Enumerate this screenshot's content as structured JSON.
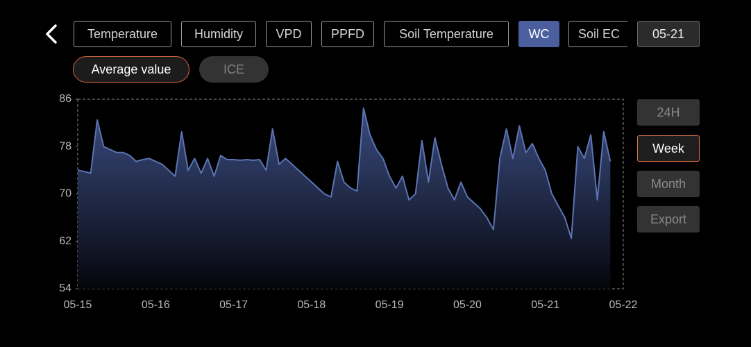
{
  "header": {
    "tabs": [
      "Temperature",
      "Humidity",
      "VPD",
      "PPFD",
      "Soil Temperature",
      "WC",
      "Soil EC"
    ],
    "date": "05-21"
  },
  "modes": [
    "Average value",
    "ICE"
  ],
  "ranges": [
    "24H",
    "Week",
    "Month",
    "Export"
  ],
  "chart_data": {
    "type": "area",
    "categories": [
      "05-15",
      null,
      null,
      null,
      null,
      null,
      null,
      null,
      null,
      null,
      null,
      null,
      "05-16",
      null,
      null,
      null,
      null,
      null,
      null,
      null,
      null,
      null,
      null,
      null,
      "05-17",
      null,
      null,
      null,
      null,
      null,
      null,
      null,
      null,
      null,
      null,
      null,
      "05-18",
      null,
      null,
      null,
      null,
      null,
      null,
      null,
      null,
      null,
      null,
      null,
      "05-19",
      null,
      null,
      null,
      null,
      null,
      null,
      null,
      null,
      null,
      null,
      null,
      "05-20",
      null,
      null,
      null,
      null,
      null,
      null,
      null,
      null,
      null,
      null,
      null,
      "05-21",
      null,
      null,
      null,
      null,
      null,
      null,
      null,
      null,
      null,
      null,
      null,
      "05-22"
    ],
    "series": [
      {
        "name": "WC",
        "color": "#5b74b3",
        "values": [
          74,
          73.8,
          73.5,
          82.5,
          78,
          77.5,
          77,
          77,
          76.5,
          75.5,
          75.8,
          76,
          75.5,
          75,
          74,
          73,
          80.5,
          74,
          76,
          73.5,
          76,
          73,
          76.5,
          75.8,
          75.8,
          75.7,
          75.8,
          75.7,
          75.8,
          74,
          81,
          75,
          76,
          75,
          74,
          73,
          72,
          71,
          70,
          69.5,
          75.5,
          72,
          71,
          70.5,
          84.5,
          80,
          77.5,
          76,
          73,
          71,
          73,
          69,
          70,
          79,
          72,
          79.5,
          75,
          71,
          69,
          72,
          69.5,
          68.5,
          67.5,
          66,
          64,
          76,
          81,
          76,
          81.5,
          77,
          78.5,
          76,
          74,
          70,
          68,
          66,
          62.5,
          78,
          76,
          80,
          69,
          80.5,
          75.5,
          null,
          null
        ]
      }
    ],
    "ylim": [
      54,
      86
    ],
    "yticks": [
      54,
      62,
      70,
      78,
      86
    ],
    "grid": false
  }
}
